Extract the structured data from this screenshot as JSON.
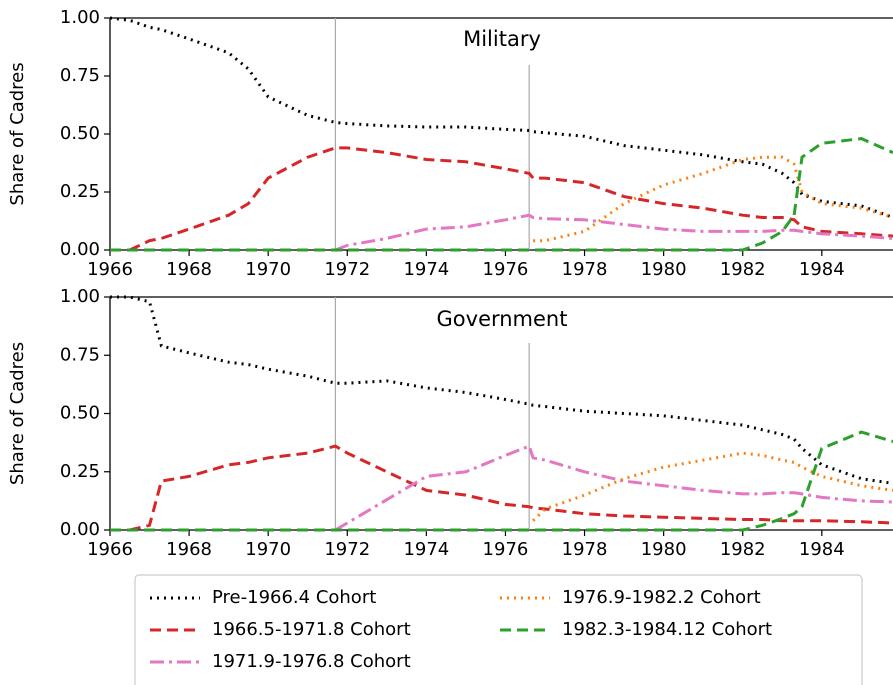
{
  "chart_data": [
    {
      "type": "line",
      "title": "Military",
      "ylabel": "Share of Cadres",
      "x": [
        1966,
        1966.5,
        1967,
        1967.3,
        1968,
        1969,
        1969.5,
        1970,
        1971,
        1971.7,
        1972,
        1973,
        1974,
        1975,
        1976,
        1976.6,
        1976.7,
        1977,
        1978,
        1979,
        1980,
        1981,
        1982,
        1982.5,
        1983,
        1983.3,
        1983.5,
        1984,
        1985,
        1985.8
      ],
      "xlim": [
        1966,
        1985.8
      ],
      "xticks": [
        1966,
        1968,
        1970,
        1972,
        1974,
        1976,
        1978,
        1980,
        1982,
        1984
      ],
      "ylim": [
        0,
        1
      ],
      "yticks": [
        {
          "value": 0,
          "label": "0.00"
        },
        {
          "value": 0.25,
          "label": "0.25"
        },
        {
          "value": 0.5,
          "label": "0.50"
        },
        {
          "value": 0.75,
          "label": "0.75"
        },
        {
          "value": 1,
          "label": "1.00"
        }
      ],
      "vlines": [
        1971.7,
        1976.6
      ],
      "series": [
        {
          "name": "Pre-1966.4 Cohort",
          "color": "#000000",
          "values": [
            1.0,
            0.99,
            0.96,
            0.95,
            0.91,
            0.85,
            0.78,
            0.66,
            0.58,
            0.55,
            0.545,
            0.535,
            0.53,
            0.53,
            0.52,
            0.515,
            0.51,
            0.505,
            0.49,
            0.45,
            0.43,
            0.41,
            0.38,
            0.37,
            0.33,
            0.29,
            0.24,
            0.21,
            0.19,
            0.14
          ]
        },
        {
          "name": "1966.5-1971.8 Cohort",
          "color": "#d62728",
          "values": [
            null,
            0,
            0.04,
            0.05,
            0.09,
            0.15,
            0.2,
            0.31,
            0.4,
            0.44,
            0.44,
            0.42,
            0.39,
            0.38,
            0.35,
            0.33,
            0.31,
            0.31,
            0.29,
            0.23,
            0.2,
            0.18,
            0.15,
            0.14,
            0.14,
            0.13,
            0.1,
            0.08,
            0.07,
            0.06
          ]
        },
        {
          "name": "1971.9-1976.8 Cohort",
          "color": "#e377c2",
          "values": [
            null,
            null,
            null,
            null,
            null,
            null,
            null,
            null,
            null,
            0,
            0.02,
            0.05,
            0.09,
            0.1,
            0.13,
            0.15,
            0.14,
            0.135,
            0.13,
            0.11,
            0.09,
            0.08,
            0.08,
            0.08,
            0.085,
            0.085,
            0.08,
            0.07,
            0.06,
            0.05
          ]
        },
        {
          "name": "1976.9-1982.2 Cohort",
          "color": "#ff7f0e",
          "values": [
            null,
            null,
            null,
            null,
            null,
            null,
            null,
            null,
            null,
            null,
            null,
            null,
            null,
            null,
            null,
            null,
            0.04,
            0.04,
            0.08,
            0.2,
            0.28,
            0.33,
            0.39,
            0.4,
            0.4,
            0.37,
            0.25,
            0.2,
            0.18,
            0.14
          ]
        },
        {
          "name": "1982.3-1984.12 Cohort",
          "color": "#2ca02c",
          "values": [
            0,
            0,
            0,
            0,
            0,
            0,
            0,
            0,
            0,
            0,
            0,
            0,
            0,
            0,
            0,
            0,
            0,
            0,
            0,
            0,
            0,
            0,
            0,
            0.03,
            0.08,
            0.15,
            0.4,
            0.46,
            0.48,
            0.42
          ]
        }
      ]
    },
    {
      "type": "line",
      "title": "Government",
      "ylabel": "Share of Cadres",
      "x": [
        1966,
        1966.5,
        1967,
        1967.3,
        1968,
        1969,
        1969.5,
        1970,
        1971,
        1971.7,
        1972,
        1973,
        1974,
        1975,
        1976,
        1976.6,
        1976.7,
        1977,
        1978,
        1979,
        1980,
        1981,
        1982,
        1982.5,
        1983,
        1983.3,
        1983.5,
        1984,
        1985,
        1985.8
      ],
      "xlim": [
        1966,
        1985.8
      ],
      "xticks": [
        1966,
        1968,
        1970,
        1972,
        1974,
        1976,
        1978,
        1980,
        1982,
        1984
      ],
      "ylim": [
        0,
        1
      ],
      "yticks": [
        {
          "value": 0,
          "label": "0.00"
        },
        {
          "value": 0.25,
          "label": "0.25"
        },
        {
          "value": 0.5,
          "label": "0.50"
        },
        {
          "value": 0.75,
          "label": "0.75"
        },
        {
          "value": 1,
          "label": "1.00"
        }
      ],
      "vlines": [
        1971.7,
        1976.6
      ],
      "series": [
        {
          "color": "#000000",
          "values": [
            1.0,
            1.0,
            0.98,
            0.79,
            0.76,
            0.72,
            0.71,
            0.69,
            0.66,
            0.63,
            0.63,
            0.64,
            0.61,
            0.59,
            0.56,
            0.54,
            0.535,
            0.53,
            0.51,
            0.5,
            0.49,
            0.47,
            0.45,
            0.43,
            0.41,
            0.39,
            0.35,
            0.28,
            0.22,
            0.2
          ]
        },
        {
          "color": "#d62728",
          "values": [
            null,
            0,
            0.02,
            0.21,
            0.23,
            0.28,
            0.29,
            0.31,
            0.33,
            0.36,
            0.33,
            0.25,
            0.17,
            0.15,
            0.11,
            0.1,
            0.095,
            0.09,
            0.07,
            0.06,
            0.055,
            0.05,
            0.045,
            0.045,
            0.04,
            0.04,
            0.04,
            0.04,
            0.035,
            0.03
          ]
        },
        {
          "color": "#e377c2",
          "values": [
            null,
            null,
            null,
            null,
            null,
            null,
            null,
            null,
            null,
            0,
            0.03,
            0.13,
            0.23,
            0.25,
            0.32,
            0.36,
            0.31,
            0.3,
            0.25,
            0.21,
            0.19,
            0.17,
            0.155,
            0.155,
            0.16,
            0.16,
            0.155,
            0.14,
            0.125,
            0.12
          ]
        },
        {
          "color": "#ff7f0e",
          "values": [
            null,
            null,
            null,
            null,
            null,
            null,
            null,
            null,
            null,
            null,
            null,
            null,
            null,
            null,
            null,
            null,
            0.04,
            0.09,
            0.15,
            0.22,
            0.27,
            0.3,
            0.33,
            0.32,
            0.3,
            0.29,
            0.27,
            0.23,
            0.19,
            0.17
          ]
        },
        {
          "color": "#2ca02c",
          "values": [
            0,
            0,
            0,
            0,
            0,
            0,
            0,
            0,
            0,
            0,
            0,
            0,
            0,
            0,
            0,
            0,
            0,
            0,
            0,
            0,
            0,
            0,
            0,
            0.02,
            0.05,
            0.07,
            0.1,
            0.35,
            0.42,
            0.38
          ]
        }
      ]
    }
  ]
}
